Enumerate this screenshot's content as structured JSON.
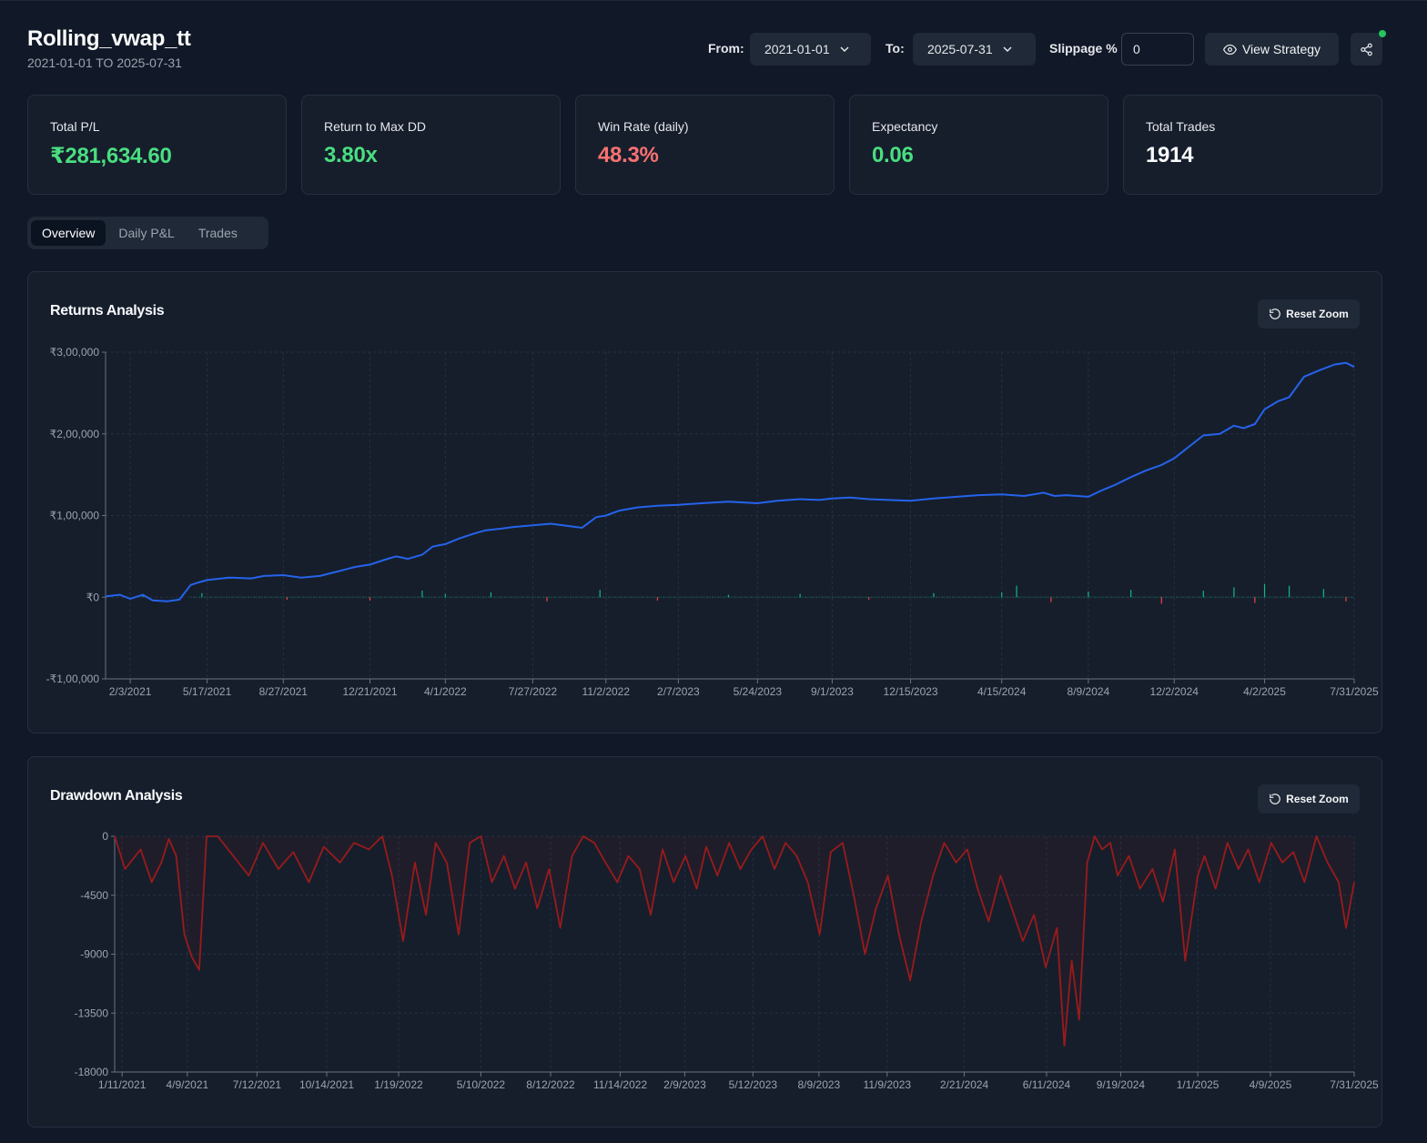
{
  "header": {
    "title": "Rolling_vwap_tt",
    "subtitle": "2021-01-01 TO 2025-07-31",
    "from_label": "From:",
    "from_value": "2021-01-01",
    "to_label": "To:",
    "to_value": "2025-07-31",
    "slippage_label": "Slippage %",
    "slippage_value": "0",
    "view_strategy_label": "View Strategy",
    "status_color": "#22c55e"
  },
  "stats": [
    {
      "label": "Total P/L",
      "value": "₹281,634.60",
      "color": "#4ade80"
    },
    {
      "label": "Return to Max DD",
      "value": "3.80x",
      "color": "#4ade80"
    },
    {
      "label": "Win Rate (daily)",
      "value": "48.3%",
      "color": "#f87171"
    },
    {
      "label": "Expectancy",
      "value": "0.06",
      "color": "#4ade80"
    },
    {
      "label": "Total Trades",
      "value": "1914",
      "color": "#f9fafb"
    }
  ],
  "tabs": [
    {
      "label": "Overview",
      "active": true
    },
    {
      "label": "Daily P&L",
      "active": false
    },
    {
      "label": "Trades",
      "active": false
    }
  ],
  "returns_panel": {
    "title": "Returns Analysis",
    "reset_label": "Reset Zoom"
  },
  "drawdown_panel": {
    "title": "Drawdown Analysis",
    "reset_label": "Reset Zoom"
  },
  "chart_data": [
    {
      "type": "line",
      "title": "Returns Analysis",
      "y_tick_labels": [
        "₹3,00,000",
        "₹2,00,000",
        "₹1,00,000",
        "₹0",
        "-₹1,00,000"
      ],
      "y_ticks": [
        300000,
        200000,
        100000,
        0,
        -100000
      ],
      "ylim": [
        -100000,
        300000
      ],
      "x_tick_labels": [
        "2/3/2021",
        "5/17/2021",
        "8/27/2021",
        "12/21/2021",
        "4/1/2022",
        "7/27/2022",
        "11/2/2022",
        "2/7/2023",
        "5/24/2023",
        "9/1/2023",
        "12/15/2023",
        "4/15/2024",
        "8/9/2024",
        "12/2/2024",
        "4/2/2025",
        "7/31/2025"
      ],
      "xlim": [
        "2021-01-01",
        "2025-07-31"
      ],
      "grid": true,
      "series_color": "#2563eb",
      "daily_pos_color": "#10b981",
      "daily_neg_color": "#ef4444",
      "x": [
        "2021-01-01",
        "2021-01-20",
        "2021-02-03",
        "2021-02-20",
        "2021-03-05",
        "2021-03-25",
        "2021-04-10",
        "2021-04-25",
        "2021-05-05",
        "2021-05-17",
        "2021-06-15",
        "2021-07-15",
        "2021-08-01",
        "2021-08-27",
        "2021-09-20",
        "2021-10-15",
        "2021-11-10",
        "2021-12-01",
        "2021-12-21",
        "2022-01-10",
        "2022-01-25",
        "2022-02-10",
        "2022-03-01",
        "2022-03-15",
        "2022-04-01",
        "2022-04-20",
        "2022-05-10",
        "2022-05-25",
        "2022-06-15",
        "2022-07-01",
        "2022-07-27",
        "2022-08-20",
        "2022-09-15",
        "2022-10-01",
        "2022-10-20",
        "2022-11-02",
        "2022-11-20",
        "2022-12-15",
        "2023-01-10",
        "2023-02-07",
        "2023-03-10",
        "2023-04-15",
        "2023-05-24",
        "2023-06-20",
        "2023-07-20",
        "2023-08-15",
        "2023-09-01",
        "2023-09-25",
        "2023-10-20",
        "2023-11-15",
        "2023-12-15",
        "2024-01-15",
        "2024-02-15",
        "2024-03-15",
        "2024-04-15",
        "2024-05-15",
        "2024-06-10",
        "2024-06-25",
        "2024-07-10",
        "2024-08-09",
        "2024-08-25",
        "2024-09-15",
        "2024-10-05",
        "2024-10-25",
        "2024-11-15",
        "2024-12-02",
        "2024-12-20",
        "2025-01-10",
        "2025-02-01",
        "2025-02-20",
        "2025-03-05",
        "2025-03-20",
        "2025-04-02",
        "2025-04-20",
        "2025-05-05",
        "2025-05-25",
        "2025-06-15",
        "2025-07-05",
        "2025-07-20",
        "2025-07-31"
      ],
      "y": [
        1000,
        3000,
        -2000,
        3000,
        -4000,
        -5000,
        -3000,
        15000,
        18000,
        21000,
        24000,
        23000,
        26000,
        27000,
        24000,
        26000,
        32000,
        37000,
        40000,
        46000,
        50000,
        47000,
        52000,
        62000,
        65000,
        72000,
        78000,
        82000,
        84000,
        86000,
        88000,
        90000,
        87000,
        85000,
        98000,
        100000,
        106000,
        110000,
        112000,
        113000,
        115000,
        117000,
        115000,
        118000,
        120000,
        119000,
        121000,
        122000,
        120000,
        119000,
        118000,
        121000,
        123000,
        125000,
        126000,
        124000,
        128000,
        124000,
        125000,
        123000,
        130000,
        138000,
        147000,
        155000,
        162000,
        170000,
        183000,
        198000,
        200000,
        210000,
        207000,
        212000,
        230000,
        240000,
        245000,
        270000,
        278000,
        285000,
        287000,
        282000
      ],
      "daily_x": [
        "2021-02-20",
        "2021-05-10",
        "2021-09-01",
        "2021-12-21",
        "2022-03-01",
        "2022-04-01",
        "2022-06-01",
        "2022-08-15",
        "2022-10-25",
        "2023-01-10",
        "2023-04-15",
        "2023-07-20",
        "2023-10-20",
        "2024-01-15",
        "2024-04-15",
        "2024-05-05",
        "2024-06-20",
        "2024-08-09",
        "2024-10-05",
        "2024-11-15",
        "2025-01-10",
        "2025-02-20",
        "2025-03-20",
        "2025-04-02",
        "2025-05-05",
        "2025-06-20",
        "2025-07-20"
      ],
      "daily_pl": [
        3000,
        5000,
        -3000,
        -4000,
        8000,
        4000,
        6000,
        -5000,
        9000,
        -4000,
        3000,
        4000,
        -3000,
        5000,
        6000,
        14000,
        -6000,
        7000,
        9000,
        -8000,
        8000,
        12000,
        -7000,
        16000,
        14000,
        10000,
        -5000
      ]
    },
    {
      "type": "area",
      "title": "Drawdown Analysis",
      "y_tick_labels": [
        "0",
        "-4500",
        "-9000",
        "-13500",
        "-18000"
      ],
      "y_ticks": [
        0,
        -4500,
        -9000,
        -13500,
        -18000
      ],
      "ylim": [
        -18000,
        0
      ],
      "x_tick_labels": [
        "1/11/2021",
        "4/9/2021",
        "7/12/2021",
        "10/14/2021",
        "1/19/2022",
        "5/10/2022",
        "8/12/2022",
        "11/14/2022",
        "2/9/2023",
        "5/12/2023",
        "8/9/2023",
        "11/9/2023",
        "2/21/2024",
        "6/11/2024",
        "9/19/2024",
        "1/1/2025",
        "4/9/2025",
        "7/31/2025"
      ],
      "xlim": [
        "2021-01-01",
        "2025-07-31"
      ],
      "grid": true,
      "series_color": "#991b1b",
      "x": [
        "2021-01-01",
        "2021-01-15",
        "2021-02-05",
        "2021-02-20",
        "2021-03-05",
        "2021-03-15",
        "2021-03-25",
        "2021-04-05",
        "2021-04-15",
        "2021-04-25",
        "2021-05-05",
        "2021-05-20",
        "2021-06-10",
        "2021-07-01",
        "2021-07-20",
        "2021-08-10",
        "2021-08-30",
        "2021-09-20",
        "2021-10-10",
        "2021-11-01",
        "2021-11-20",
        "2021-12-10",
        "2021-12-28",
        "2022-01-10",
        "2022-01-25",
        "2022-02-10",
        "2022-02-25",
        "2022-03-10",
        "2022-03-25",
        "2022-04-10",
        "2022-04-25",
        "2022-05-10",
        "2022-05-25",
        "2022-06-10",
        "2022-06-25",
        "2022-07-10",
        "2022-07-25",
        "2022-08-10",
        "2022-08-25",
        "2022-09-10",
        "2022-09-25",
        "2022-10-10",
        "2022-10-25",
        "2022-11-10",
        "2022-11-25",
        "2022-12-10",
        "2022-12-25",
        "2023-01-10",
        "2023-01-25",
        "2023-02-10",
        "2023-02-25",
        "2023-03-10",
        "2023-03-25",
        "2023-04-10",
        "2023-04-25",
        "2023-05-10",
        "2023-05-25",
        "2023-06-10",
        "2023-06-25",
        "2023-07-10",
        "2023-07-25",
        "2023-08-10",
        "2023-08-25",
        "2023-09-10",
        "2023-09-25",
        "2023-10-10",
        "2023-10-25",
        "2023-11-10",
        "2023-11-25",
        "2023-12-10",
        "2023-12-25",
        "2024-01-10",
        "2024-01-25",
        "2024-02-10",
        "2024-02-25",
        "2024-03-10",
        "2024-03-25",
        "2024-04-10",
        "2024-04-25",
        "2024-05-10",
        "2024-05-25",
        "2024-06-10",
        "2024-06-25",
        "2024-07-05",
        "2024-07-15",
        "2024-07-25",
        "2024-08-05",
        "2024-08-15",
        "2024-08-25",
        "2024-09-05",
        "2024-09-15",
        "2024-09-30",
        "2024-10-15",
        "2024-11-01",
        "2024-11-15",
        "2024-12-01",
        "2024-12-15",
        "2025-01-01",
        "2025-01-10",
        "2025-01-25",
        "2025-02-10",
        "2025-02-25",
        "2025-03-10",
        "2025-03-25",
        "2025-04-10",
        "2025-04-25",
        "2025-05-10",
        "2025-05-25",
        "2025-06-10",
        "2025-06-25",
        "2025-07-10",
        "2025-07-20",
        "2025-07-31"
      ],
      "y": [
        0,
        -2500,
        -1000,
        -3500,
        -2000,
        -200,
        -1500,
        -7500,
        -9200,
        -10200,
        0,
        0,
        -1500,
        -3000,
        -500,
        -2500,
        -1200,
        -3500,
        -800,
        -2000,
        -500,
        -1000,
        0,
        -3000,
        -8000,
        -2000,
        -6000,
        -500,
        -2000,
        -7500,
        -500,
        0,
        -3500,
        -1500,
        -4000,
        -2000,
        -5500,
        -2500,
        -7000,
        -1500,
        0,
        -500,
        -2000,
        -3500,
        -1500,
        -2500,
        -6000,
        -1000,
        -3500,
        -1500,
        -4000,
        -800,
        -3000,
        -500,
        -2500,
        -1000,
        0,
        -2500,
        -500,
        -1500,
        -3500,
        -7500,
        -1200,
        -500,
        -4500,
        -9000,
        -5500,
        -3000,
        -7500,
        -11000,
        -6500,
        -3000,
        -500,
        -2000,
        -1000,
        -4000,
        -6500,
        -3000,
        -5500,
        -8000,
        -6000,
        -10000,
        -7000,
        -16000,
        -9500,
        -14000,
        -2000,
        0,
        -1000,
        -500,
        -3000,
        -1500,
        -4000,
        -2500,
        -5000,
        -1000,
        -9500,
        -3000,
        -1500,
        -4000,
        -500,
        -2500,
        -1000,
        -3500,
        -500,
        -2000,
        -1200,
        -3500,
        0,
        -2000,
        -3500,
        -7000,
        -3500
      ]
    }
  ]
}
